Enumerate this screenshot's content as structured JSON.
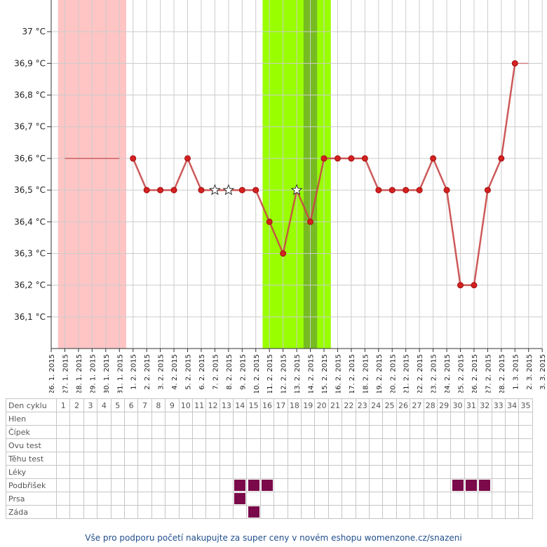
{
  "chart_data": {
    "type": "line",
    "unit": "°C",
    "ylim": [
      36.0,
      37.1
    ],
    "y_ticks": [
      {
        "value": 36.1,
        "label": "36,1 °C"
      },
      {
        "value": 36.2,
        "label": "36,2 °C"
      },
      {
        "value": 36.3,
        "label": "36,3 °C"
      },
      {
        "value": 36.4,
        "label": "36,4 °C"
      },
      {
        "value": 36.5,
        "label": "36,5 °C"
      },
      {
        "value": 36.6,
        "label": "36,6 °C"
      },
      {
        "value": 36.7,
        "label": "36,7 °C"
      },
      {
        "value": 36.8,
        "label": "36,8 °C"
      },
      {
        "value": 36.9,
        "label": "36,9 °C"
      },
      {
        "value": 37.0,
        "label": "37 °C"
      }
    ],
    "x_labels": [
      "26. 1. 2015",
      "27. 1. 2015",
      "28. 1. 2015",
      "29. 1. 2015",
      "30. 1. 2015",
      "31. 1. 2015",
      "1. 2. 2015",
      "2. 2. 2015",
      "3. 2. 2015",
      "4. 2. 2015",
      "5. 2. 2015",
      "6. 2. 2015",
      "7. 2. 2015",
      "8. 2. 2015",
      "9. 2. 2015",
      "10. 2. 2015",
      "11. 2. 2015",
      "12. 2. 2015",
      "13. 2. 2015",
      "14. 2. 2015",
      "15. 2. 2015",
      "16. 2. 2015",
      "17. 2. 2015",
      "18. 2. 2015",
      "19. 2. 2015",
      "20. 2. 2015",
      "21. 2. 2015",
      "22. 2. 2015",
      "23. 2. 2015",
      "24. 2. 2015",
      "25. 2. 2015",
      "26. 2. 2015",
      "27. 2. 2015",
      "28. 2. 2015",
      "1. 3. 2015",
      "2. 3. 2015",
      "3. 3. 2015"
    ],
    "menstruation_band": {
      "from": "27. 1. 2015",
      "to": "31. 1. 2015",
      "color": "#ffc4c4"
    },
    "fertile_band": {
      "from": "11. 2. 2015",
      "to": "15. 2. 2015",
      "color": "#99ff00"
    },
    "ovulation_band": {
      "from": "14. 2. 2015",
      "to": "14. 2. 2015",
      "color": "#77bb22"
    },
    "coverline": {
      "value": 36.6,
      "from": "27. 1. 2015",
      "to": "31. 1. 2015"
    },
    "series": [
      {
        "color": "#c84848",
        "points": [
          {
            "x": "1. 2. 2015",
            "y": 36.6
          },
          {
            "x": "2. 2. 2015",
            "y": 36.5
          },
          {
            "x": "3. 2. 2015",
            "y": 36.5
          },
          {
            "x": "4. 2. 2015",
            "y": 36.5
          },
          {
            "x": "5. 2. 2015",
            "y": 36.6
          },
          {
            "x": "6. 2. 2015",
            "y": 36.5
          },
          {
            "x": "7. 2. 2015",
            "y": 36.5,
            "marker": "star"
          },
          {
            "x": "8. 2. 2015",
            "y": 36.5,
            "marker": "star"
          },
          {
            "x": "9. 2. 2015",
            "y": 36.5
          },
          {
            "x": "10. 2. 2015",
            "y": 36.5
          },
          {
            "x": "11. 2. 2015",
            "y": 36.4
          },
          {
            "x": "12. 2. 2015",
            "y": 36.3
          },
          {
            "x": "13. 2. 2015",
            "y": 36.5,
            "marker": "star"
          },
          {
            "x": "14. 2. 2015",
            "y": 36.4
          },
          {
            "x": "15. 2. 2015",
            "y": 36.6
          },
          {
            "x": "16. 2. 2015",
            "y": 36.6
          },
          {
            "x": "17. 2. 2015",
            "y": 36.6
          },
          {
            "x": "18. 2. 2015",
            "y": 36.6
          },
          {
            "x": "19. 2. 2015",
            "y": 36.5
          },
          {
            "x": "20. 2. 2015",
            "y": 36.5
          },
          {
            "x": "21. 2. 2015",
            "y": 36.5
          },
          {
            "x": "22. 2. 2015",
            "y": 36.5
          },
          {
            "x": "23. 2. 2015",
            "y": 36.6
          },
          {
            "x": "24. 2. 2015",
            "y": 36.5
          },
          {
            "x": "25. 2. 2015",
            "y": 36.2
          },
          {
            "x": "26. 2. 2015",
            "y": 36.2
          },
          {
            "x": "27. 2. 2015",
            "y": 36.5
          },
          {
            "x": "28. 2. 2015",
            "y": 36.6
          },
          {
            "x": "1. 3. 2015",
            "y": 36.9
          }
        ],
        "trailing_line_to": "2. 3. 2015"
      }
    ],
    "grid": true
  },
  "table": {
    "header_label": "Den cyklu",
    "days": [
      "1",
      "2",
      "3",
      "4",
      "5",
      "6",
      "7",
      "8",
      "9",
      "10",
      "11",
      "12",
      "13",
      "14",
      "15",
      "16",
      "17",
      "18",
      "19",
      "20",
      "21",
      "22",
      "23",
      "24",
      "25",
      "26",
      "27",
      "28",
      "29",
      "30",
      "31",
      "32",
      "33",
      "34",
      "35"
    ],
    "mark_color": "#7a0a4a",
    "rows": [
      {
        "label": "Hlen",
        "marked_days": []
      },
      {
        "label": "Čípek",
        "marked_days": []
      },
      {
        "label": "Ovu test",
        "marked_days": []
      },
      {
        "label": "Těhu test",
        "marked_days": []
      },
      {
        "label": "Léky",
        "marked_days": []
      },
      {
        "label": "Podbřišek",
        "marked_days": [
          14,
          15,
          16,
          30,
          31,
          32
        ]
      },
      {
        "label": "Prsa",
        "marked_days": [
          14
        ]
      },
      {
        "label": "Záda",
        "marked_days": [
          15
        ]
      }
    ]
  },
  "footer": {
    "text": "Vše pro podporu početí nakupujte za super ceny v novém eshopu womenzone.cz/snazeni"
  }
}
